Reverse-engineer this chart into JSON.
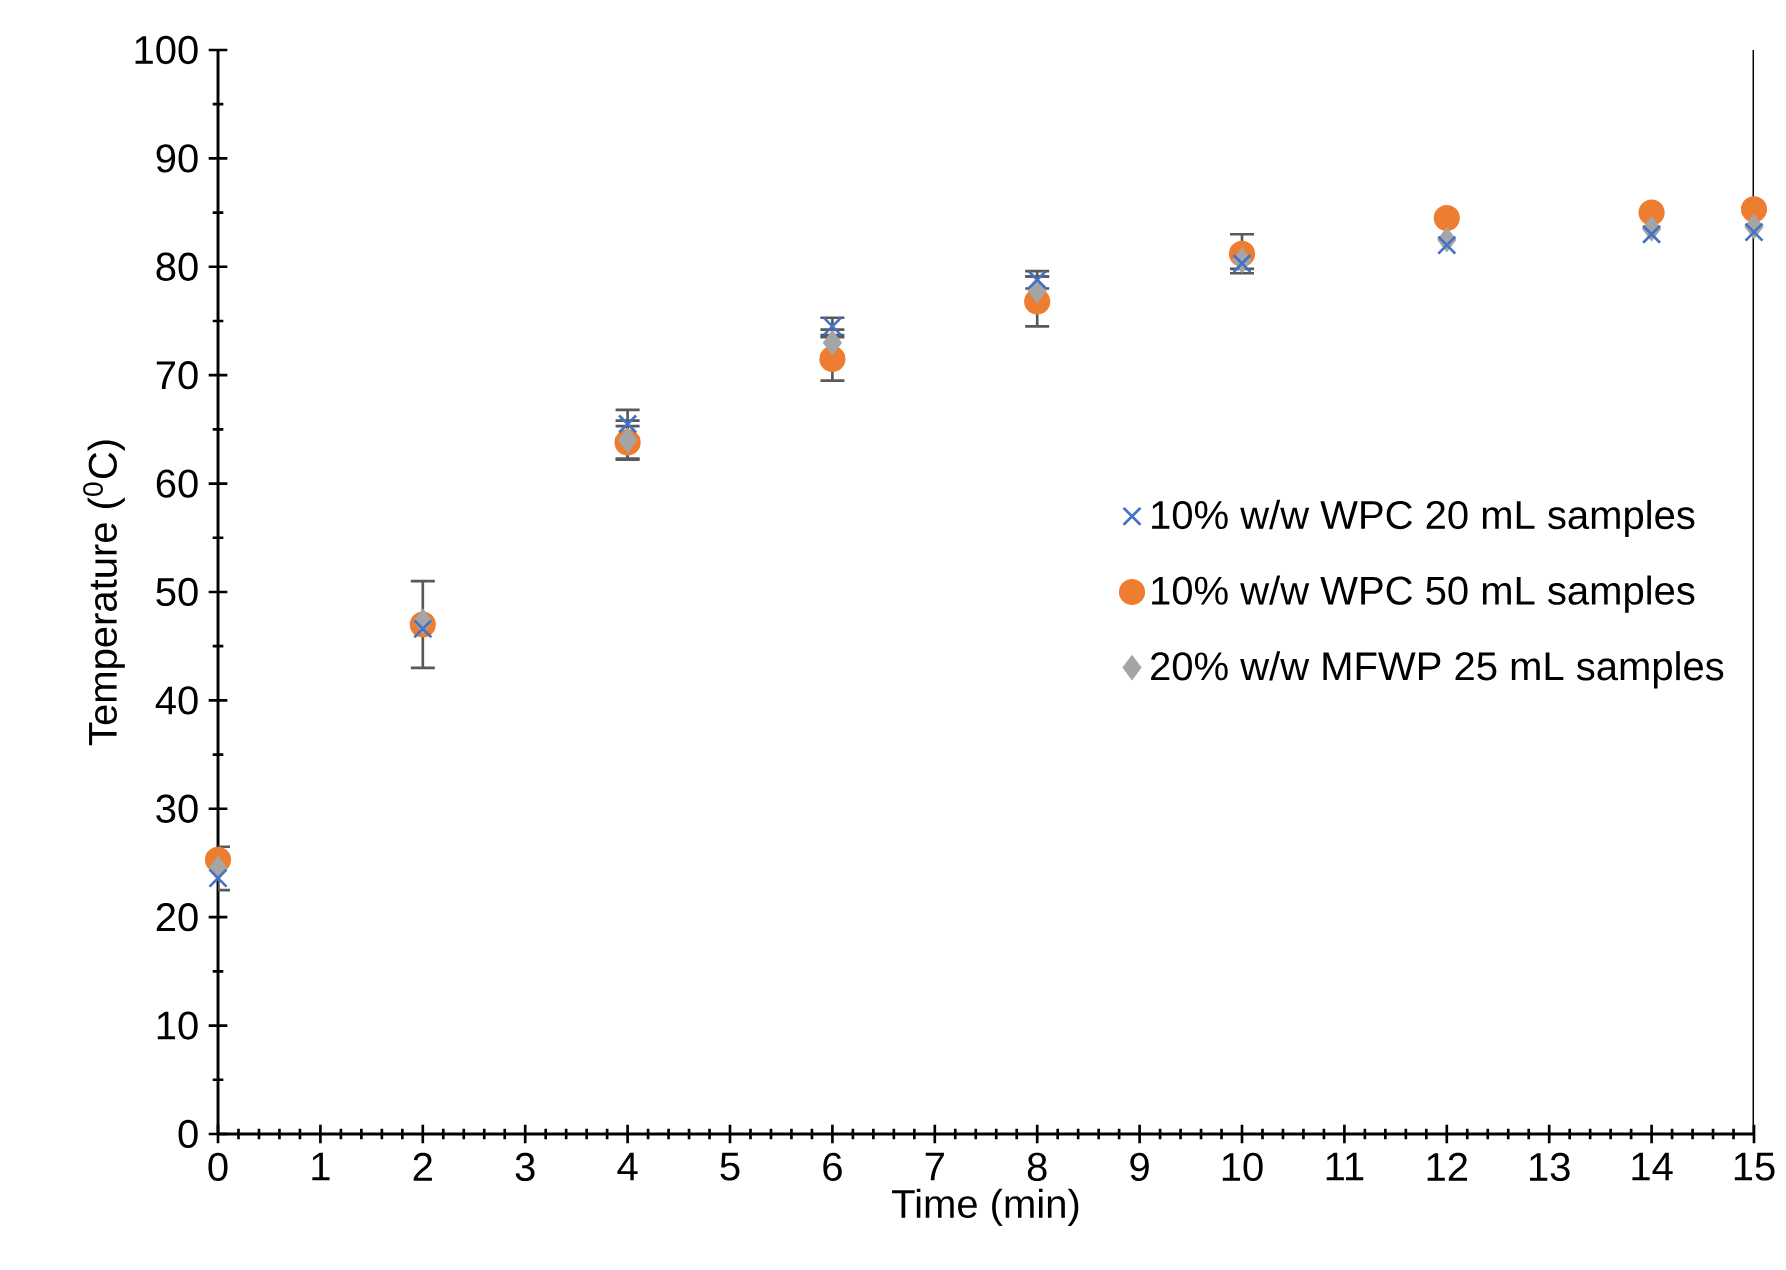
{
  "chart_data": {
    "type": "scatter",
    "xlabel": "Time (min)",
    "ylabel": "Temperature ($^{0}$C)",
    "x": [
      0,
      2,
      4,
      6,
      8,
      10,
      12,
      14,
      15
    ],
    "series": [
      {
        "name": "10% w/w WPC 20 mL samples",
        "color": "#4472c4",
        "marker": "cross",
        "values": [
          23.6,
          46.6,
          65.5,
          74.5,
          78.8,
          80.3,
          82,
          83,
          83.2
        ],
        "errors": [
          null,
          null,
          1.3,
          0.8,
          0.8,
          null,
          null,
          null,
          null
        ]
      },
      {
        "name": "10% w/w WPC 50 mL samples",
        "color": "#ed7d31",
        "marker": "circle",
        "values": [
          25.3,
          47,
          63.8,
          71.5,
          76.8,
          81.2,
          84.5,
          85,
          85.3
        ],
        "errors": [
          null,
          4,
          1.5,
          2,
          2.3,
          1.8,
          null,
          null,
          null
        ]
      },
      {
        "name": "20% w/w MFWP 25 mL samples",
        "color": "#a5a5a5",
        "marker": "diamond",
        "values": [
          24.5,
          47.3,
          64,
          73,
          77.8,
          80.6,
          82.5,
          83.5,
          83.7
        ],
        "errors": [
          2,
          null,
          1.8,
          1.2,
          1.3,
          0.8,
          null,
          null,
          null
        ]
      }
    ],
    "xlim": [
      0,
      15
    ],
    "xticks": [
      0,
      1,
      2,
      3,
      4,
      5,
      6,
      7,
      8,
      9,
      10,
      11,
      12,
      13,
      14,
      15
    ],
    "ylim": [
      0,
      100
    ],
    "yticks": [
      0,
      10,
      20,
      30,
      40,
      50,
      60,
      70,
      80,
      90,
      100
    ],
    "grid": false,
    "legend": "right"
  }
}
